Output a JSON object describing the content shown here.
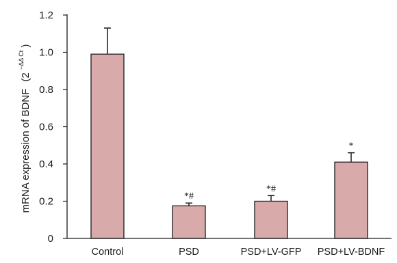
{
  "chart_data": {
    "type": "bar",
    "title": "",
    "xlabel": "",
    "ylabel": "mRNA expression of BDNF",
    "ylabel_unit_base": "(2",
    "ylabel_unit_exp": "−ΔΔ Ct",
    "ylabel_unit_close": ")",
    "ylim": [
      0,
      1.2
    ],
    "yticks": [
      "0",
      "0.2",
      "0.4",
      "0.6",
      "0.8",
      "1.0",
      "1.2"
    ],
    "categories": [
      "Control",
      "PSD",
      "PSD+LV-GFP",
      "PSD+LV-BDNF"
    ],
    "values": [
      0.99,
      0.175,
      0.2,
      0.41
    ],
    "errors": [
      0.14,
      0.015,
      0.03,
      0.05
    ],
    "annotations": [
      "",
      "*#",
      "*#",
      "*"
    ],
    "grid": false,
    "bar_color": "#d9aaaa",
    "edge_color": "#1a1a1a"
  }
}
